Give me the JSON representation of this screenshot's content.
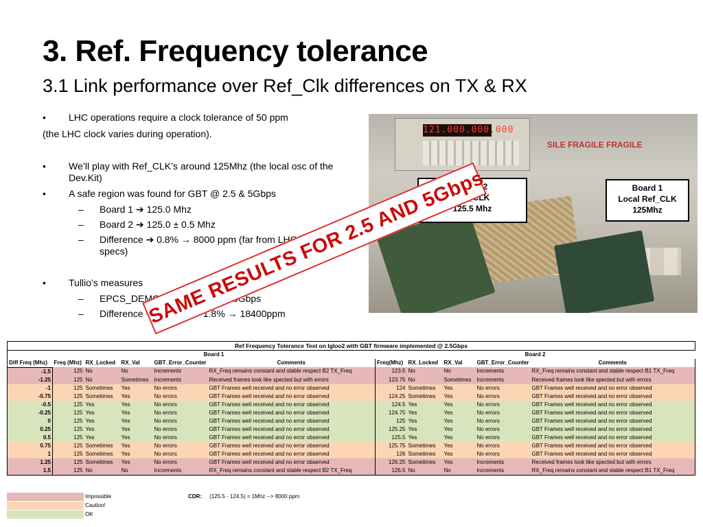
{
  "title": "3. Ref. Frequency tolerance",
  "subtitle": "3.1 Link performance over Ref_Clk differences on TX & RX",
  "bullets": {
    "b1": "LHC operations require a clock tolerance of 50 ppm",
    "b1_cont": "(the LHC clock varies during operation).",
    "b2": "We’ll play with Ref_CLK’s around 125Mhz (the local osc of the Dev.Kit)",
    "b3": "A safe region was found for GBT @ 2.5 & 5Gbps",
    "b3_sub1": "Board 1 ➔ 125.0 Mhz",
    "b3_sub2": "Board 2 ➔ 125.0 ± 0.5 Mhz",
    "b3_sub3": "Difference ➔  0.8% → 8000 ppm (far from LHC specs)",
    "b4": "Tullio’s measures",
    "b4_sub1": "EPCS_DEMO example @ 3.125Gbps",
    "b4_sub2": "Difference  ➔ 2.3Mhz → 1.8% → 18400ppm",
    "bullet_mark": "•",
    "dash_mark": "–"
  },
  "photo": {
    "counter_display": "121.000.000.000",
    "box_text": "SILE FRAGILE FRAGILE",
    "label1": "Board 2\nRef_CLK\n125.5 Mhz",
    "label1_lines": [
      "Board 2",
      "Ref_CLK",
      "125.5 Mhz"
    ],
    "label2_lines": [
      "Board 1",
      "Local Ref_CLK",
      "125Mhz"
    ]
  },
  "stamp": "SAME RESULTS FOR 2.5 AND 5Gbps",
  "table": {
    "caption": "Ref Frequency Tolerance Test on Igloo2 with GBT firmware implemented @ 2.5Gbps",
    "board1": "Board 1",
    "board2": "Board 2",
    "diff_header": "Diff Freq (Mhz)",
    "b1_headers": [
      "Freq (Mhz)",
      "RX_Locked",
      "RX_Val",
      "GBT_Error_Counter",
      "Comments"
    ],
    "b2_headers": [
      "Freq(Mhz)",
      "RX_Locked",
      "RX_Val",
      "GBT_Error_Counter",
      "Comments"
    ],
    "rows": [
      {
        "status": "imp",
        "diff": "-1.5",
        "f1": "125",
        "l1": "No",
        "v1": "No",
        "e1": "Increments",
        "c1": "RX_Freq remains constant and stable respect B2 TX_Freq",
        "f2": "123.5",
        "l2": "No",
        "v2": "No",
        "e2": "Increments",
        "c2": "RX_Freq remains constant and stable respect B1 TX_Freq"
      },
      {
        "status": "imp",
        "diff": "-1.25",
        "f1": "125",
        "l1": "No",
        "v1": "Sometimes",
        "e1": "Increments",
        "c1": "Received frames look like spected but with errors",
        "f2": "123.75",
        "l2": "No",
        "v2": "Sometimes",
        "e2": "Increments",
        "c2": "Received frames look like spected but with errors"
      },
      {
        "status": "cau",
        "diff": "-1",
        "f1": "125",
        "l1": "Sometimes",
        "v1": "Yes",
        "e1": "No errors",
        "c1": "GBT Frames well received and no error observed",
        "f2": "124",
        "l2": "Sometimes",
        "v2": "Yes",
        "e2": "No errors",
        "c2": "GBT Frames well received and no error observed"
      },
      {
        "status": "cau",
        "diff": "-0.75",
        "f1": "125",
        "l1": "Sometimes",
        "v1": "Yes",
        "e1": "No errors",
        "c1": "GBT Frames well received and no error observed",
        "f2": "124.25",
        "l2": "Sometimes",
        "v2": "Yes",
        "e2": "No errors",
        "c2": "GBT Frames well received and no error observed"
      },
      {
        "status": "ok",
        "diff": "-0.5",
        "f1": "125",
        "l1": "Yes",
        "v1": "Yes",
        "e1": "No errors",
        "c1": "GBT Frames well received and no error observed",
        "f2": "124.5",
        "l2": "Yes",
        "v2": "Yes",
        "e2": "No errors",
        "c2": "GBT Frames well received and no error observed"
      },
      {
        "status": "ok",
        "diff": "-0.25",
        "f1": "125",
        "l1": "Yes",
        "v1": "Yes",
        "e1": "No errors",
        "c1": "GBT Frames well received and no error observed",
        "f2": "124.75",
        "l2": "Yes",
        "v2": "Yes",
        "e2": "No errors",
        "c2": "GBT Frames well received and no error observed"
      },
      {
        "status": "ok",
        "diff": "0",
        "f1": "125",
        "l1": "Yes",
        "v1": "Yes",
        "e1": "No errors",
        "c1": "GBT Frames well received and no error observed",
        "f2": "125",
        "l2": "Yes",
        "v2": "Yes",
        "e2": "No errors",
        "c2": "GBT Frames well received and no error observed"
      },
      {
        "status": "ok",
        "diff": "0.25",
        "f1": "125",
        "l1": "Yes",
        "v1": "Yes",
        "e1": "No errors",
        "c1": "GBT Frames well received and no error observed",
        "f2": "125.25",
        "l2": "Yes",
        "v2": "Yes",
        "e2": "No errors",
        "c2": "GBT Frames well received and no error observed"
      },
      {
        "status": "ok",
        "diff": "0.5",
        "f1": "125",
        "l1": "Yes",
        "v1": "Yes",
        "e1": "No errors",
        "c1": "GBT Frames well received and no error observed",
        "f2": "125.5",
        "l2": "Yes",
        "v2": "Yes",
        "e2": "No errors",
        "c2": "GBT Frames well received and no error observed"
      },
      {
        "status": "cau",
        "diff": "0.75",
        "f1": "125",
        "l1": "Sometimes",
        "v1": "Yes",
        "e1": "No errors",
        "c1": "GBT Frames well received and no error observed",
        "f2": "125.75",
        "l2": "Sometimes",
        "v2": "Yes",
        "e2": "No errors",
        "c2": "GBT Frames well received and no error observed"
      },
      {
        "status": "cau",
        "diff": "1",
        "f1": "125",
        "l1": "Sometimes",
        "v1": "Yes",
        "e1": "No errors",
        "c1": "GBT Frames well received and no error observed",
        "f2": "126",
        "l2": "Sometimes",
        "v2": "Yes",
        "e2": "No errors",
        "c2": "GBT Frames well received and no error observed"
      },
      {
        "status": "imp",
        "diff": "1.25",
        "f1": "125",
        "l1": "Sometimes",
        "v1": "Yes",
        "e1": "No errors",
        "c1": "GBT Frames well received and no error observed",
        "f2": "126.25",
        "l2": "Sometimes",
        "v2": "Yes",
        "e2": "Increments",
        "c2": "Received frames look like spected but with errors"
      },
      {
        "status": "imp",
        "diff": "1.5",
        "f1": "125",
        "l1": "No",
        "v1": "No",
        "e1": "Increments",
        "c1": "RX_Freq remains constant and stable respect B2 TX_Freq",
        "f2": "126.5",
        "l2": "No",
        "v2": "No",
        "e2": "Increments",
        "c2": "RX_Freq remains constant and stable respect B1 TX_Freq"
      }
    ]
  },
  "legend": {
    "impossible": "Impossible",
    "caution": "Caution!",
    "ok": "OK",
    "colors": {
      "impossible": "#e6b8b7",
      "caution": "#fcd5b4",
      "ok": "#d8e4bc"
    }
  },
  "cdr": {
    "label": "CDR:",
    "text": "(125.5 - 124.5) = 1Mhz --> 8000 ppm"
  }
}
